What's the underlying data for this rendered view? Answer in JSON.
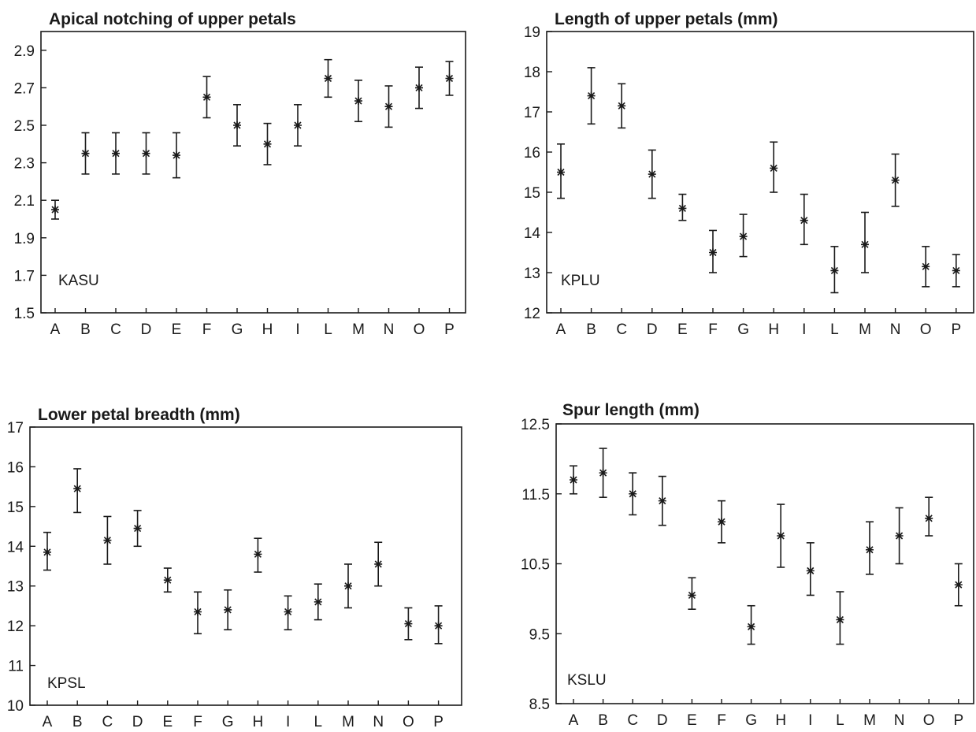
{
  "chart_data": [
    {
      "type": "scatter",
      "title": "Apical notching of upper petals",
      "code_label": "KASU",
      "ylim": [
        1.5,
        3.0
      ],
      "yticks": [
        1.5,
        1.7,
        1.9,
        2.1,
        2.3,
        2.5,
        2.7,
        2.9
      ],
      "ytick_labels": [
        "1.5",
        "1.7",
        "1.9",
        "2.1",
        "2.3",
        "2.5",
        "2.7",
        "2.9"
      ],
      "categories": [
        "A",
        "B",
        "C",
        "D",
        "E",
        "F",
        "G",
        "H",
        "I",
        "L",
        "M",
        "N",
        "O",
        "P"
      ],
      "means": [
        2.05,
        2.35,
        2.35,
        2.35,
        2.34,
        2.65,
        2.5,
        2.4,
        2.5,
        2.75,
        2.63,
        2.6,
        2.7,
        2.75
      ],
      "lower": [
        2.0,
        2.24,
        2.24,
        2.24,
        2.22,
        2.54,
        2.39,
        2.29,
        2.39,
        2.65,
        2.52,
        2.49,
        2.59,
        2.66
      ],
      "upper": [
        2.1,
        2.46,
        2.46,
        2.46,
        2.46,
        2.76,
        2.61,
        2.51,
        2.61,
        2.85,
        2.74,
        2.71,
        2.81,
        2.84
      ]
    },
    {
      "type": "scatter",
      "title": "Length of upper petals (mm)",
      "code_label": "KPLU",
      "ylim": [
        12,
        19
      ],
      "yticks": [
        12,
        13,
        14,
        15,
        16,
        17,
        18,
        19
      ],
      "ytick_labels": [
        "12",
        "13",
        "14",
        "15",
        "16",
        "17",
        "18",
        "19"
      ],
      "categories": [
        "A",
        "B",
        "C",
        "D",
        "E",
        "F",
        "G",
        "H",
        "I",
        "L",
        "M",
        "N",
        "O",
        "P"
      ],
      "means": [
        15.5,
        17.4,
        17.15,
        15.45,
        14.6,
        13.5,
        13.9,
        15.6,
        14.3,
        13.05,
        13.7,
        15.3,
        13.15,
        13.05
      ],
      "lower": [
        14.85,
        16.7,
        16.6,
        14.85,
        14.3,
        13.0,
        13.4,
        15.0,
        13.7,
        12.5,
        13.0,
        14.65,
        12.65,
        12.65
      ],
      "upper": [
        16.2,
        18.1,
        17.7,
        16.05,
        14.95,
        14.05,
        14.45,
        16.25,
        14.95,
        13.65,
        14.5,
        15.95,
        13.65,
        13.45
      ]
    },
    {
      "type": "scatter",
      "title": "Lower petal breadth (mm)",
      "code_label": "KPSL",
      "ylim": [
        10,
        17
      ],
      "yticks": [
        10,
        11,
        12,
        13,
        14,
        15,
        16,
        17
      ],
      "ytick_labels": [
        "10",
        "11",
        "12",
        "13",
        "14",
        "15",
        "16",
        "17"
      ],
      "categories": [
        "A",
        "B",
        "C",
        "D",
        "E",
        "F",
        "G",
        "H",
        "I",
        "L",
        "M",
        "N",
        "O",
        "P"
      ],
      "means": [
        13.85,
        15.45,
        14.15,
        14.45,
        13.15,
        12.35,
        12.4,
        13.8,
        12.35,
        12.6,
        13.0,
        13.55,
        12.05,
        12.0
      ],
      "lower": [
        13.4,
        14.85,
        13.55,
        14.0,
        12.85,
        11.8,
        11.9,
        13.35,
        11.9,
        12.15,
        12.45,
        13.0,
        11.65,
        11.55
      ],
      "upper": [
        14.35,
        15.95,
        14.75,
        14.9,
        13.45,
        12.85,
        12.9,
        14.2,
        12.75,
        13.05,
        13.55,
        14.1,
        12.45,
        12.5
      ]
    },
    {
      "type": "scatter",
      "title": "Spur length (mm)",
      "code_label": "KSLU",
      "ylim": [
        8.5,
        12.5
      ],
      "yticks": [
        8.5,
        9.5,
        10.5,
        11.5,
        12.5
      ],
      "ytick_labels": [
        "8.5",
        "9.5",
        "10.5",
        "11.5",
        "12.5"
      ],
      "categories": [
        "A",
        "B",
        "C",
        "D",
        "E",
        "F",
        "G",
        "H",
        "I",
        "L",
        "M",
        "N",
        "O",
        "P"
      ],
      "means": [
        11.7,
        11.8,
        11.5,
        11.4,
        10.05,
        11.1,
        9.6,
        10.9,
        10.4,
        9.7,
        10.7,
        10.9,
        11.15,
        10.2
      ],
      "lower": [
        11.5,
        11.45,
        11.2,
        11.05,
        9.85,
        10.8,
        9.35,
        10.45,
        10.05,
        9.35,
        10.35,
        10.5,
        10.9,
        9.9
      ],
      "upper": [
        11.9,
        12.15,
        11.8,
        11.75,
        10.3,
        11.4,
        9.9,
        11.35,
        10.8,
        10.1,
        11.1,
        11.3,
        11.45,
        10.5
      ]
    }
  ]
}
